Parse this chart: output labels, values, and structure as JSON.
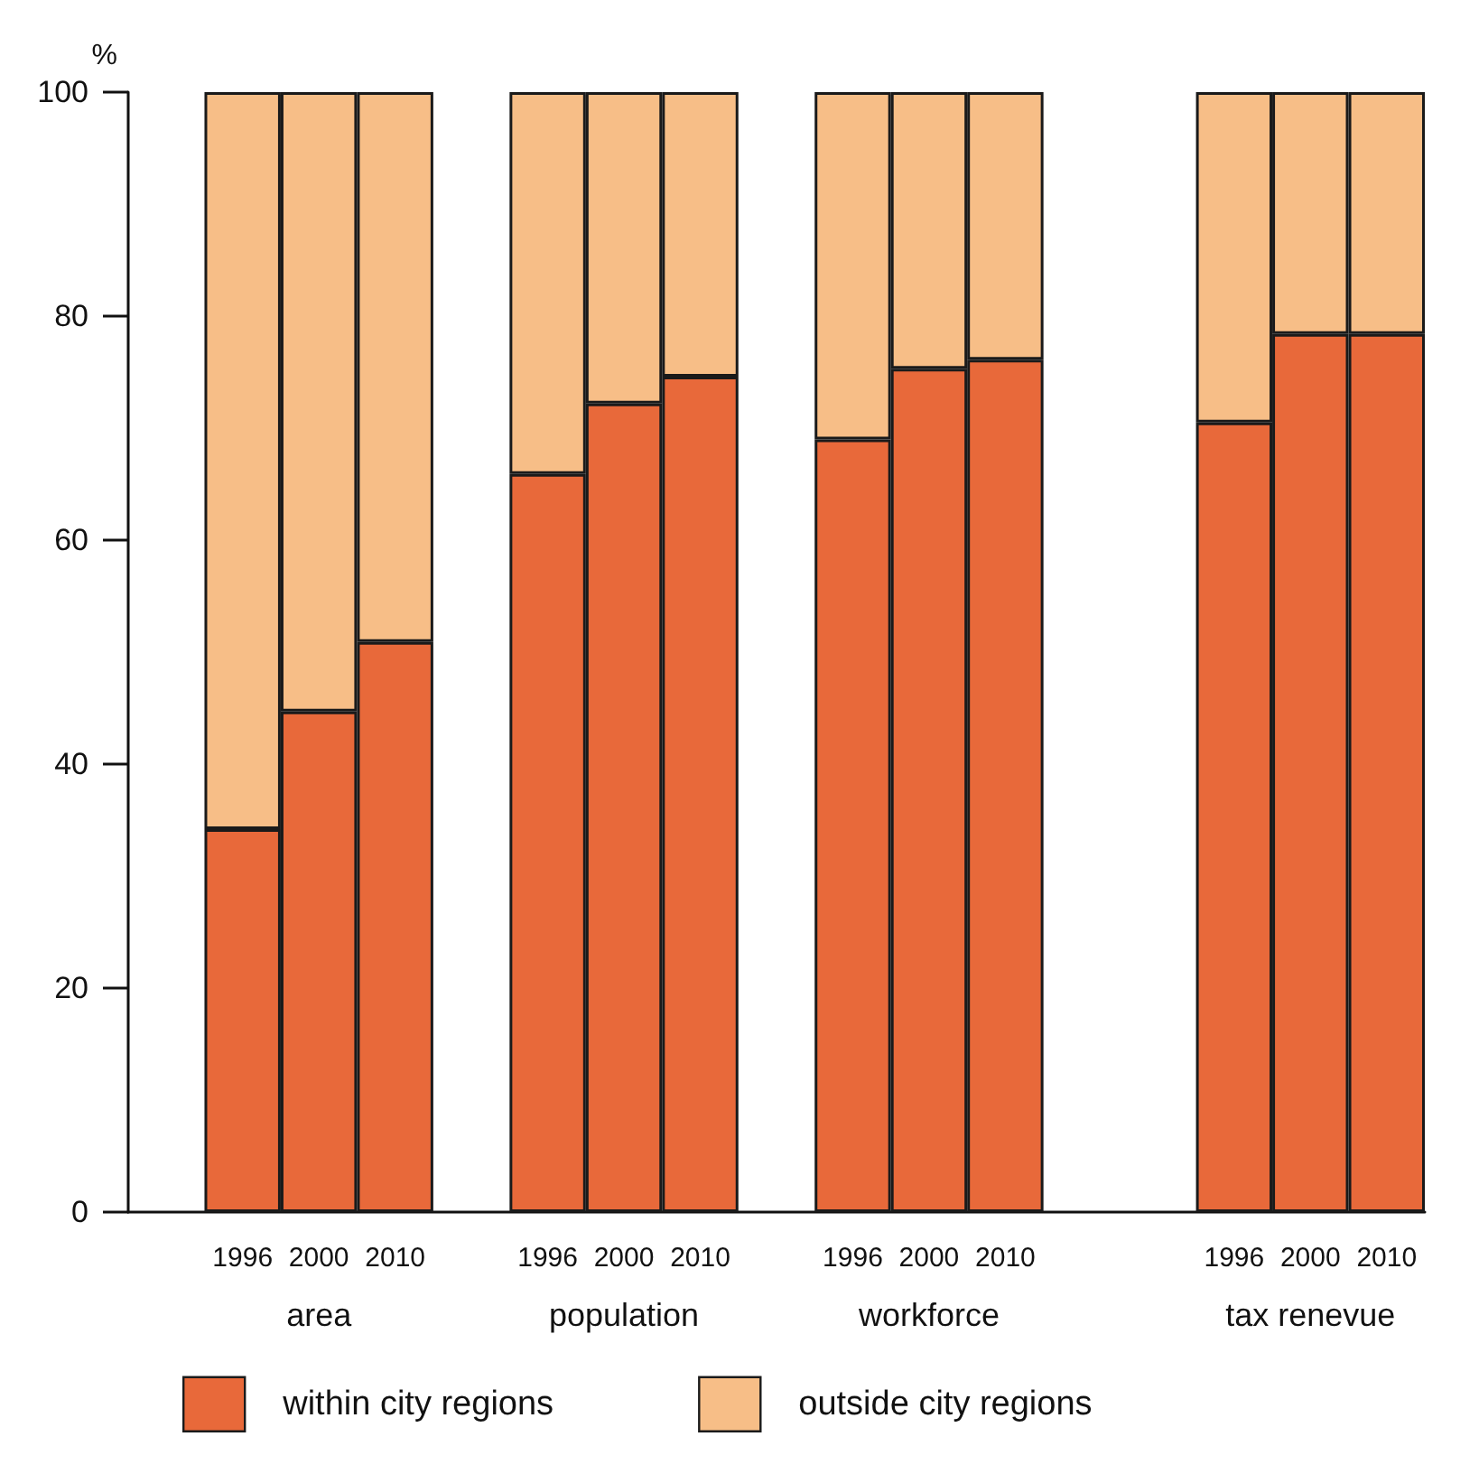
{
  "chart_data": {
    "type": "bar",
    "stacked": true,
    "ylabel": "%",
    "categories": [
      null,
      "1996",
      "2000",
      "2010",
      null,
      "1996",
      "2000",
      "2010",
      null,
      "1996",
      "2000",
      "2010",
      null,
      null,
      "1996",
      "2000",
      "2010"
    ],
    "series": [
      {
        "name": "within city regions",
        "color": "#e8693a",
        "values": [
          null,
          34.2,
          44.7,
          50.9,
          null,
          65.9,
          72.2,
          74.6,
          null,
          69.0,
          75.3,
          76.1,
          null,
          null,
          70.5,
          78.4,
          78.4
        ]
      },
      {
        "name": "outside city regions",
        "color": "#f7be87",
        "values": [
          null,
          65.8,
          55.3,
          49.1,
          null,
          34.1,
          27.8,
          25.4,
          null,
          31.0,
          24.7,
          23.9,
          null,
          null,
          29.5,
          21.6,
          21.6
        ]
      }
    ],
    "annotations": [
      "area",
      "population",
      "workforce",
      "tax renevue"
    ],
    "ylim": [
      0,
      100
    ],
    "yticks": [
      0,
      20,
      40,
      60,
      80,
      100
    ],
    "grid": false,
    "legend": "bottom left"
  }
}
